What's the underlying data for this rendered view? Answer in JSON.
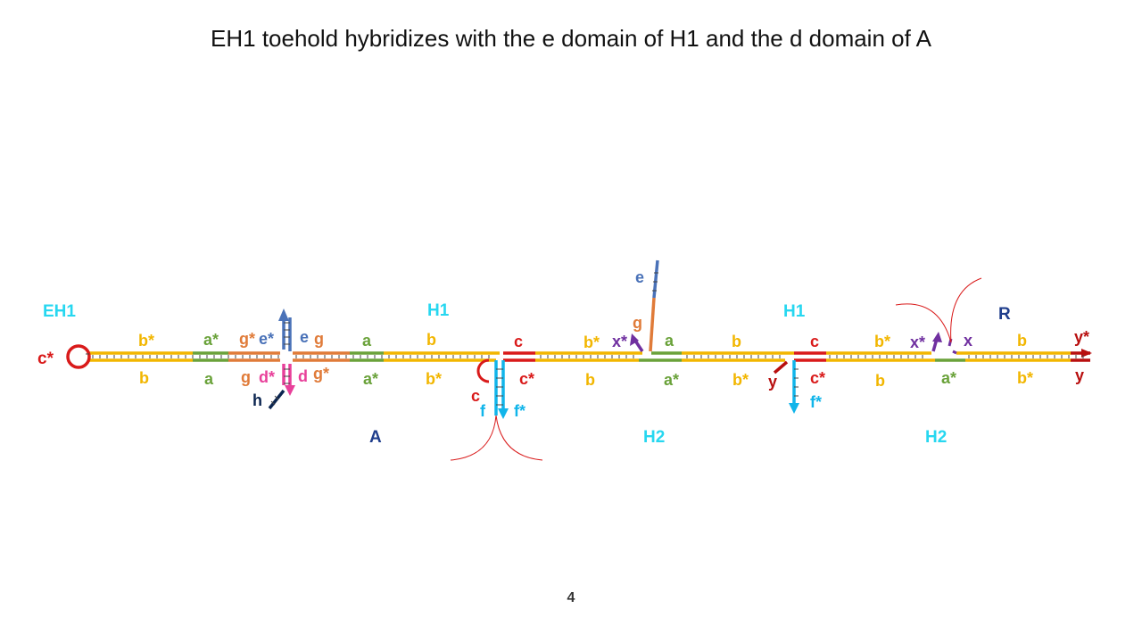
{
  "title": "EH1 toehold hybridizes with the e domain of H1 and the d domain of A",
  "page_number": "4",
  "colors": {
    "yellow": "#f2b600",
    "green": "#6aa23a",
    "orange": "#e07b39",
    "blue": "#4a72b8",
    "pink": "#e8409a",
    "red": "#d91a1a",
    "cyan": "#11b5ea",
    "purple": "#7030a0",
    "darkred": "#b80f0f",
    "navy": "#1f3d8c",
    "teal_label": "#27d7f0",
    "darknavy": "#0b2550"
  },
  "strands": {
    "eh1": "EH1",
    "h1_first": "H1",
    "h1_second": "H1",
    "a": "A",
    "h2_first": "H2",
    "h2_second": "H2",
    "r": "R"
  },
  "domains": {
    "c_star_left": "c*",
    "top_b_star_1": "b*",
    "bot_b_1": "b",
    "top_a_star_1": "a*",
    "bot_a_1": "a",
    "top_g_star_1": "g*",
    "bot_g_1": "g",
    "top_e_star": "e*",
    "bot_d_star": "d*",
    "bot_h": "h",
    "top_e": "e",
    "top_g_2": "g",
    "bot_d": "d",
    "bot_g_star_2": "g*",
    "top_a_2": "a",
    "bot_a_star_2": "a*",
    "top_b_2": "b",
    "bot_b_star_2": "b*",
    "bot_c_loop": "c",
    "bot_f": "f",
    "bot_f_star": "f*",
    "top_c_1": "c",
    "bot_c_star_1": "c*",
    "top_b_star_3": "b*",
    "bot_b_3": "b",
    "top_x_star_1": "x*",
    "top_e_h1": "e",
    "top_g_h1": "g",
    "top_a_3": "a",
    "bot_a_star_3": "a*",
    "top_b_4": "b",
    "bot_b_star_4": "b*",
    "bot_y": "y",
    "top_c_2": "c",
    "bot_c_star_2": "c*",
    "bot_f_star_2": "f*",
    "top_b_star_5": "b*",
    "bot_b_5": "b",
    "top_x_star_2": "x*",
    "top_x": "x",
    "bot_a_star_4": "a*",
    "top_b_6": "b",
    "bot_b_star_6": "b*",
    "top_y_star": "y*",
    "bot_y_right": "y"
  }
}
